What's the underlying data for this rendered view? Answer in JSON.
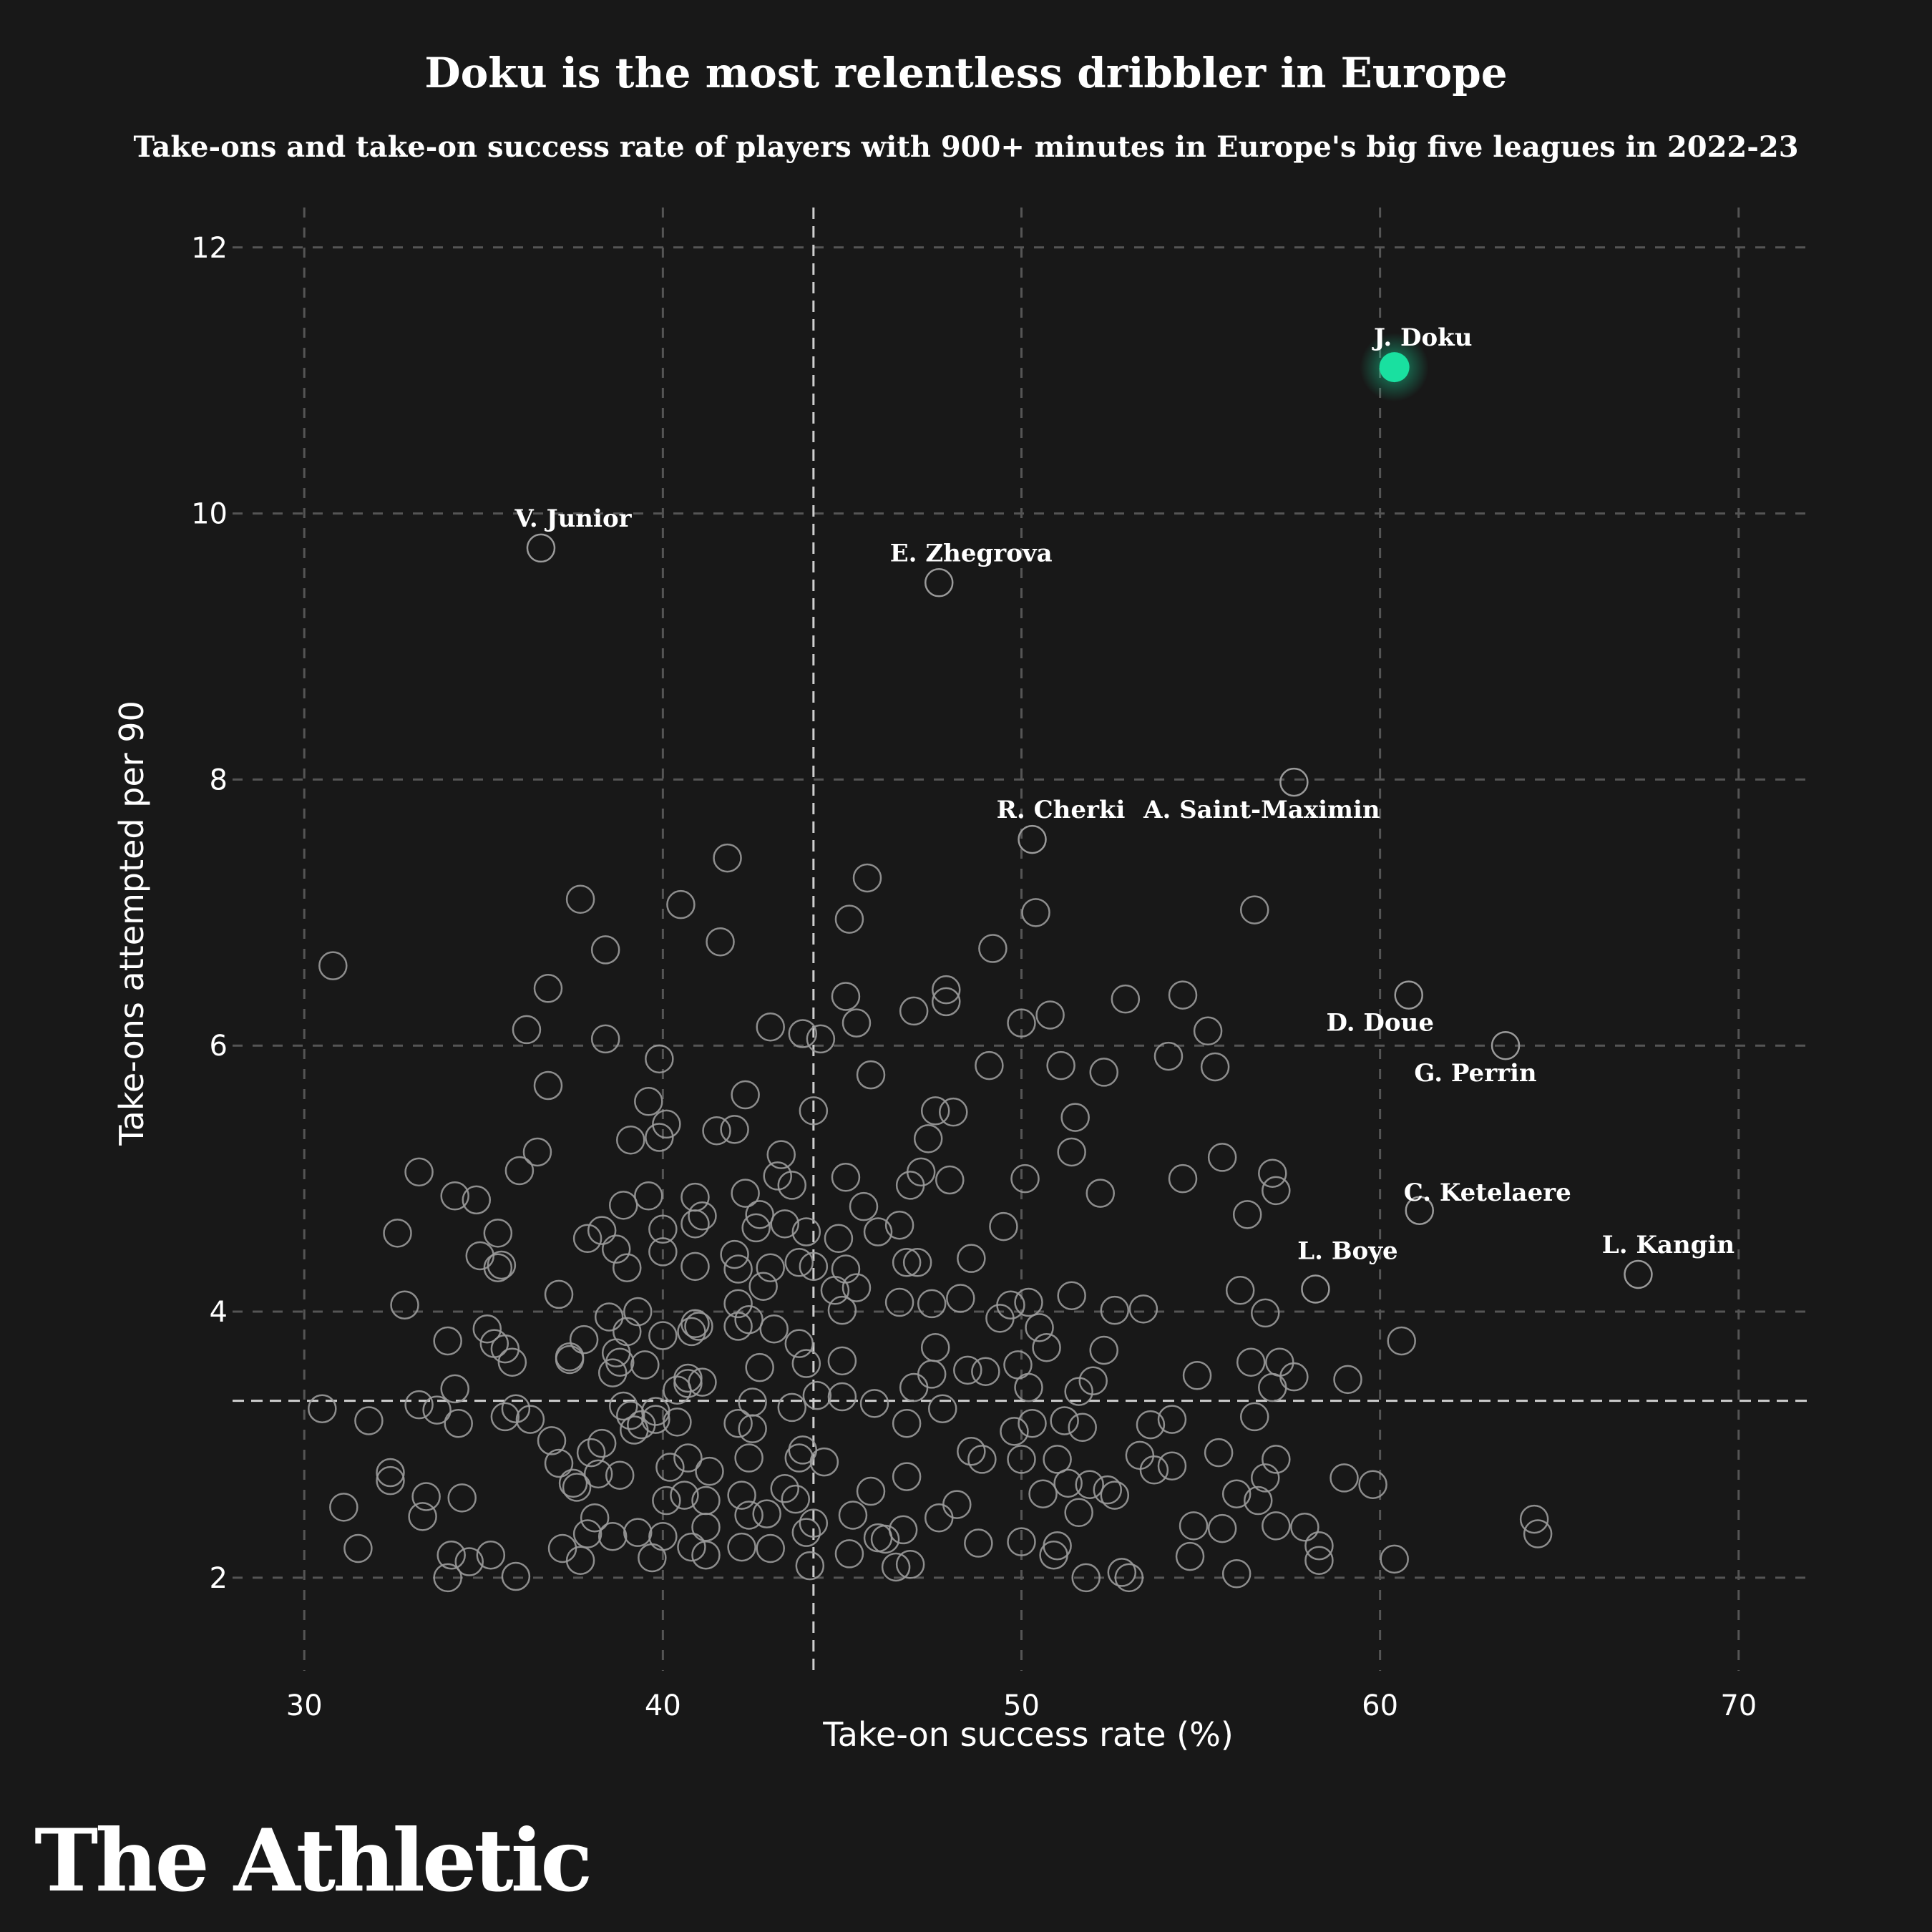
{
  "brand": "The Athletic",
  "colors": {
    "background": "#181818",
    "highlight": "#19e0a0",
    "point": "#9a9a9a",
    "grid": "#555555",
    "ref": "#cfcfcf"
  },
  "chart_data": {
    "type": "scatter",
    "title": "Doku is the most relentless dribbler in Europe",
    "subtitle": "Take-ons and take-on success rate of players with 900+ minutes in Europe's big five leagues in 2022-23",
    "xlabel": "Take-on success rate (%)",
    "ylabel": "Take-ons attempted per 90",
    "xlim": [
      28,
      72
    ],
    "ylim": [
      1.3,
      12.3
    ],
    "xticks": [
      30,
      40,
      50,
      60,
      70
    ],
    "yticks": [
      2,
      4,
      6,
      8,
      10,
      12
    ],
    "grid": true,
    "reference_lines": {
      "x": 44.2,
      "y": 3.33
    },
    "highlight": {
      "name": "J. Doku",
      "x": 60.4,
      "y": 11.1
    },
    "labeled_points": [
      {
        "name": "V. Junior",
        "x": 36.6,
        "y": 9.74
      },
      {
        "name": "E. Zhegrova",
        "x": 47.7,
        "y": 9.48
      },
      {
        "name": "R. Cherki",
        "x": 50.3,
        "y": 7.55
      },
      {
        "name": "A. Saint-Maximin",
        "x": 57.6,
        "y": 7.98
      },
      {
        "name": "D. Doue",
        "x": 60.8,
        "y": 6.38
      },
      {
        "name": "G. Perrin",
        "x": 63.5,
        "y": 6.0
      },
      {
        "name": "C. Ketelaere",
        "x": 61.1,
        "y": 4.76
      },
      {
        "name": "L. Boye",
        "x": 58.2,
        "y": 4.17
      },
      {
        "name": "L. Kangin",
        "x": 67.2,
        "y": 4.28
      }
    ],
    "series": [
      {
        "name": "Other players",
        "points": [
          [
            30.8,
            6.6
          ],
          [
            30.5,
            3.27
          ],
          [
            31.1,
            2.53
          ],
          [
            31.5,
            2.22
          ],
          [
            31.8,
            3.18
          ],
          [
            32.4,
            2.79
          ],
          [
            32.4,
            2.73
          ],
          [
            32.6,
            4.59
          ],
          [
            32.8,
            4.05
          ],
          [
            33.2,
            5.05
          ],
          [
            33.2,
            3.3
          ],
          [
            33.3,
            2.46
          ],
          [
            33.4,
            2.61
          ],
          [
            33.7,
            3.26
          ],
          [
            34.0,
            3.78
          ],
          [
            34.0,
            2.0
          ],
          [
            34.1,
            2.17
          ],
          [
            34.2,
            4.87
          ],
          [
            34.2,
            3.42
          ],
          [
            34.3,
            3.16
          ],
          [
            34.4,
            2.6
          ],
          [
            34.6,
            2.12
          ],
          [
            34.8,
            4.84
          ],
          [
            34.9,
            4.42
          ],
          [
            35.1,
            3.87
          ],
          [
            35.2,
            2.17
          ],
          [
            35.3,
            3.76
          ],
          [
            35.4,
            4.59
          ],
          [
            35.4,
            4.33
          ],
          [
            35.5,
            4.35
          ],
          [
            35.6,
            3.72
          ],
          [
            35.6,
            3.21
          ],
          [
            35.8,
            3.62
          ],
          [
            35.9,
            2.01
          ],
          [
            35.9,
            3.27
          ],
          [
            36.0,
            5.06
          ],
          [
            36.2,
            6.12
          ],
          [
            36.3,
            3.19
          ],
          [
            36.5,
            5.2
          ],
          [
            36.8,
            5.7
          ],
          [
            36.8,
            6.43
          ],
          [
            36.9,
            3.03
          ],
          [
            37.1,
            4.13
          ],
          [
            37.1,
            2.86
          ],
          [
            37.2,
            2.22
          ],
          [
            37.4,
            3.66
          ],
          [
            37.4,
            3.64
          ],
          [
            37.5,
            2.71
          ],
          [
            37.6,
            2.68
          ],
          [
            37.7,
            7.1
          ],
          [
            37.7,
            2.13
          ],
          [
            37.8,
            3.79
          ],
          [
            37.9,
            4.55
          ],
          [
            37.9,
            2.33
          ],
          [
            38.0,
            2.94
          ],
          [
            38.1,
            2.45
          ],
          [
            38.2,
            2.78
          ],
          [
            38.3,
            3.01
          ],
          [
            38.3,
            4.61
          ],
          [
            38.4,
            6.72
          ],
          [
            38.4,
            6.05
          ],
          [
            38.5,
            3.96
          ],
          [
            38.6,
            3.54
          ],
          [
            38.6,
            2.31
          ],
          [
            38.7,
            4.47
          ],
          [
            38.7,
            3.69
          ],
          [
            38.8,
            2.77
          ],
          [
            38.8,
            3.62
          ],
          [
            38.9,
            3.29
          ],
          [
            38.9,
            4.8
          ],
          [
            39.0,
            3.85
          ],
          [
            39.0,
            4.33
          ],
          [
            39.1,
            5.29
          ],
          [
            39.1,
            3.22
          ],
          [
            39.2,
            3.11
          ],
          [
            39.3,
            2.34
          ],
          [
            39.3,
            4.0
          ],
          [
            39.4,
            3.15
          ],
          [
            39.5,
            3.6
          ],
          [
            39.6,
            5.58
          ],
          [
            39.6,
            4.87
          ],
          [
            39.7,
            2.15
          ],
          [
            39.8,
            3.19
          ],
          [
            39.8,
            3.25
          ],
          [
            39.9,
            5.9
          ],
          [
            39.9,
            5.31
          ],
          [
            40.0,
            4.62
          ],
          [
            40.0,
            4.45
          ],
          [
            40.0,
            3.82
          ],
          [
            40.0,
            2.31
          ],
          [
            40.1,
            5.41
          ],
          [
            40.1,
            2.58
          ],
          [
            40.2,
            2.83
          ],
          [
            40.4,
            3.17
          ],
          [
            40.4,
            3.41
          ],
          [
            40.5,
            7.06
          ],
          [
            40.6,
            2.62
          ],
          [
            40.7,
            3.5
          ],
          [
            40.7,
            3.46
          ],
          [
            40.7,
            2.9
          ],
          [
            40.8,
            3.85
          ],
          [
            40.8,
            2.23
          ],
          [
            40.9,
            4.86
          ],
          [
            40.9,
            4.66
          ],
          [
            40.9,
            3.91
          ],
          [
            40.9,
            4.34
          ],
          [
            41.0,
            3.89
          ],
          [
            41.1,
            4.72
          ],
          [
            41.1,
            3.47
          ],
          [
            41.2,
            2.17
          ],
          [
            41.2,
            2.38
          ],
          [
            41.2,
            2.58
          ],
          [
            41.3,
            2.8
          ],
          [
            41.5,
            5.36
          ],
          [
            41.6,
            6.78
          ],
          [
            41.8,
            7.41
          ],
          [
            42.0,
            5.37
          ],
          [
            42.0,
            4.43
          ],
          [
            42.1,
            4.32
          ],
          [
            42.1,
            4.06
          ],
          [
            42.1,
            3.89
          ],
          [
            42.1,
            3.16
          ],
          [
            42.2,
            2.62
          ],
          [
            42.2,
            2.23
          ],
          [
            42.3,
            4.89
          ],
          [
            42.3,
            5.63
          ],
          [
            42.4,
            3.94
          ],
          [
            42.4,
            2.9
          ],
          [
            42.4,
            2.47
          ],
          [
            42.5,
            3.32
          ],
          [
            42.5,
            3.12
          ],
          [
            42.6,
            4.63
          ],
          [
            42.7,
            4.73
          ],
          [
            42.7,
            3.58
          ],
          [
            42.8,
            4.19
          ],
          [
            42.9,
            2.48
          ],
          [
            43.0,
            6.14
          ],
          [
            43.0,
            4.33
          ],
          [
            43.0,
            2.22
          ],
          [
            43.1,
            3.87
          ],
          [
            43.2,
            5.02
          ],
          [
            43.3,
            5.18
          ],
          [
            43.4,
            4.66
          ],
          [
            43.4,
            2.67
          ],
          [
            43.6,
            4.95
          ],
          [
            43.6,
            3.28
          ],
          [
            43.7,
            2.59
          ],
          [
            43.8,
            4.37
          ],
          [
            43.8,
            3.76
          ],
          [
            43.8,
            2.9
          ],
          [
            43.9,
            6.09
          ],
          [
            43.9,
            2.96
          ],
          [
            44.0,
            2.34
          ],
          [
            44.0,
            4.6
          ],
          [
            44.0,
            3.61
          ],
          [
            44.1,
            2.09
          ],
          [
            44.2,
            5.51
          ],
          [
            44.2,
            2.41
          ],
          [
            44.2,
            4.34
          ],
          [
            44.3,
            3.37
          ],
          [
            44.4,
            6.05
          ],
          [
            44.5,
            2.87
          ],
          [
            44.8,
            4.16
          ],
          [
            44.9,
            4.55
          ],
          [
            45.0,
            4.01
          ],
          [
            45.0,
            3.36
          ],
          [
            45.0,
            3.63
          ],
          [
            45.1,
            6.37
          ],
          [
            45.1,
            5.01
          ],
          [
            45.1,
            4.32
          ],
          [
            45.2,
            6.95
          ],
          [
            45.2,
            2.18
          ],
          [
            45.3,
            2.47
          ],
          [
            45.4,
            4.18
          ],
          [
            45.4,
            6.17
          ],
          [
            45.6,
            4.79
          ],
          [
            45.7,
            7.26
          ],
          [
            45.8,
            2.65
          ],
          [
            45.8,
            5.78
          ],
          [
            45.9,
            3.31
          ],
          [
            46.0,
            4.6
          ],
          [
            46.0,
            2.3
          ],
          [
            46.2,
            2.29
          ],
          [
            46.5,
            2.08
          ],
          [
            46.6,
            4.07
          ],
          [
            46.6,
            4.65
          ],
          [
            46.7,
            2.36
          ],
          [
            46.8,
            2.76
          ],
          [
            46.8,
            3.16
          ],
          [
            46.8,
            4.37
          ],
          [
            46.9,
            4.95
          ],
          [
            46.9,
            2.1
          ],
          [
            47.0,
            6.26
          ],
          [
            47.0,
            3.43
          ],
          [
            47.1,
            4.37
          ],
          [
            47.2,
            5.05
          ],
          [
            47.4,
            5.3
          ],
          [
            47.5,
            4.06
          ],
          [
            47.5,
            3.53
          ],
          [
            47.6,
            5.51
          ],
          [
            47.6,
            3.73
          ],
          [
            47.7,
            2.45
          ],
          [
            47.8,
            3.27
          ],
          [
            47.9,
            6.42
          ],
          [
            47.9,
            6.33
          ],
          [
            48.0,
            4.99
          ],
          [
            48.1,
            5.5
          ],
          [
            48.2,
            2.55
          ],
          [
            48.3,
            4.1
          ],
          [
            48.5,
            3.56
          ],
          [
            48.6,
            4.4
          ],
          [
            48.6,
            2.95
          ],
          [
            48.8,
            2.26
          ],
          [
            48.9,
            2.89
          ],
          [
            49.0,
            3.55
          ],
          [
            49.1,
            5.85
          ],
          [
            49.2,
            6.73
          ],
          [
            49.4,
            3.95
          ],
          [
            49.5,
            4.64
          ],
          [
            49.7,
            4.05
          ],
          [
            49.8,
            3.1
          ],
          [
            49.9,
            3.6
          ],
          [
            50.0,
            2.89
          ],
          [
            50.0,
            2.27
          ],
          [
            50.0,
            6.17
          ],
          [
            50.1,
            5.0
          ],
          [
            50.2,
            4.07
          ],
          [
            50.2,
            3.43
          ],
          [
            50.3,
            3.16
          ],
          [
            50.4,
            7.0
          ],
          [
            50.5,
            3.88
          ],
          [
            50.6,
            2.63
          ],
          [
            50.7,
            3.73
          ],
          [
            50.8,
            6.23
          ],
          [
            50.9,
            2.17
          ],
          [
            51.0,
            2.24
          ],
          [
            51.0,
            2.89
          ],
          [
            51.1,
            5.85
          ],
          [
            51.2,
            3.18
          ],
          [
            51.3,
            2.71
          ],
          [
            51.4,
            5.2
          ],
          [
            51.4,
            4.12
          ],
          [
            51.5,
            5.46
          ],
          [
            51.6,
            3.4
          ],
          [
            51.6,
            2.49
          ],
          [
            51.7,
            3.13
          ],
          [
            51.8,
            2.0
          ],
          [
            51.9,
            2.7
          ],
          [
            52.0,
            3.48
          ],
          [
            52.2,
            4.89
          ],
          [
            52.3,
            3.71
          ],
          [
            52.3,
            5.8
          ],
          [
            52.4,
            2.66
          ],
          [
            52.6,
            2.62
          ],
          [
            52.6,
            4.01
          ],
          [
            52.8,
            2.04
          ],
          [
            52.9,
            6.35
          ],
          [
            53.0,
            2.0
          ],
          [
            53.3,
            2.92
          ],
          [
            53.4,
            4.02
          ],
          [
            53.6,
            3.15
          ],
          [
            53.7,
            2.81
          ],
          [
            54.1,
            5.92
          ],
          [
            54.2,
            3.19
          ],
          [
            54.2,
            2.84
          ],
          [
            54.5,
            6.38
          ],
          [
            54.5,
            5.0
          ],
          [
            54.7,
            2.16
          ],
          [
            54.8,
            2.39
          ],
          [
            54.9,
            3.52
          ],
          [
            55.2,
            6.11
          ],
          [
            55.4,
            5.84
          ],
          [
            55.5,
            2.94
          ],
          [
            55.6,
            2.37
          ],
          [
            55.6,
            5.16
          ],
          [
            56.0,
            2.03
          ],
          [
            56.0,
            2.63
          ],
          [
            56.1,
            4.16
          ],
          [
            56.3,
            4.73
          ],
          [
            56.4,
            3.62
          ],
          [
            56.5,
            7.02
          ],
          [
            56.5,
            3.21
          ],
          [
            56.6,
            2.58
          ],
          [
            56.8,
            2.75
          ],
          [
            56.8,
            3.99
          ],
          [
            57.0,
            5.04
          ],
          [
            57.0,
            3.43
          ],
          [
            57.1,
            2.39
          ],
          [
            57.1,
            2.89
          ],
          [
            57.1,
            4.91
          ],
          [
            57.2,
            3.62
          ],
          [
            57.6,
            3.51
          ],
          [
            57.9,
            2.38
          ],
          [
            58.3,
            2.24
          ],
          [
            58.3,
            2.13
          ],
          [
            59.0,
            2.75
          ],
          [
            59.1,
            3.49
          ],
          [
            59.8,
            2.7
          ],
          [
            60.4,
            2.14
          ],
          [
            60.6,
            3.78
          ],
          [
            64.3,
            2.44
          ],
          [
            64.4,
            2.33
          ]
        ]
      }
    ]
  }
}
